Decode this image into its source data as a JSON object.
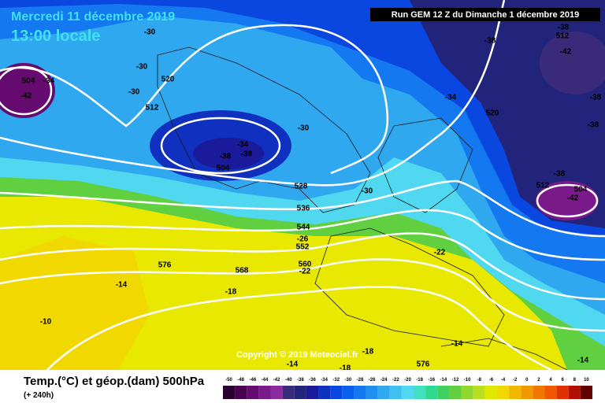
{
  "header": {
    "date": "Mercredi 11 décembre 2019",
    "time": "13:00 locale",
    "run": "Run GEM 12 Z du Dimanche 1 décembre 2019"
  },
  "footer": {
    "title": "Temp.(°C) et géop.(dam) 500hPa",
    "lead": "(+ 240h)"
  },
  "copyright": "Copyright © 2019 Meteociel.fr",
  "legend": {
    "ticks": [
      -50,
      -48,
      -46,
      -44,
      -42,
      -40,
      -38,
      -36,
      -34,
      -32,
      -30,
      -28,
      -26,
      -24,
      -22,
      -20,
      -18,
      -16,
      -14,
      -12,
      -10,
      -8,
      -6,
      -4,
      -2,
      0,
      2,
      4,
      6,
      8,
      10
    ],
    "colors": [
      "#2a0030",
      "#4a0050",
      "#650a6e",
      "#7a1a8a",
      "#8c2aa0",
      "#3a2a7a",
      "#22237a",
      "#1a1a9a",
      "#1030c0",
      "#0a46e0",
      "#0a5ef0",
      "#1478f0",
      "#2090f0",
      "#30a8f0",
      "#40c0f0",
      "#50d8f0",
      "#40e0c0",
      "#30d890",
      "#40d060",
      "#60d040",
      "#90d830",
      "#b8e020",
      "#e0e800",
      "#f0d800",
      "#f0b800",
      "#f09800",
      "#f07800",
      "#f05800",
      "#e03000",
      "#b01000",
      "#600000"
    ]
  },
  "labels": [
    -30,
    -30,
    -30,
    504,
    -34,
    -42,
    520,
    512,
    -34,
    -38,
    -38,
    504,
    -30,
    -30,
    528,
    536,
    544,
    -26,
    552,
    560,
    -22,
    568,
    576,
    -14,
    -18,
    -10,
    -34,
    520,
    -38,
    -38,
    512,
    -42,
    -38,
    -38,
    -38,
    512,
    504,
    -42,
    -22,
    -18,
    -18,
    -14,
    -14,
    576,
    -14
  ]
}
